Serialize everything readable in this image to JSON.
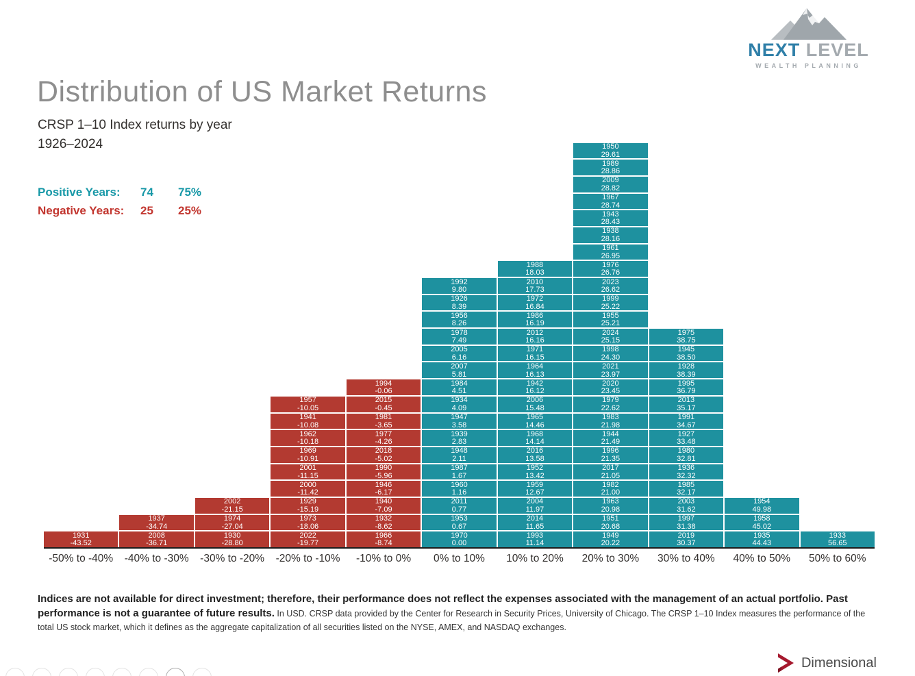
{
  "brand": {
    "name_part1": "NEXT",
    "name_part2": "LEVEL",
    "tagline": "WEALTH PLANNING"
  },
  "stats": {
    "positive_label": "Positive Years:",
    "positive_count": "74",
    "positive_pct": "75%",
    "negative_label": "Negative Years:",
    "negative_count": "25",
    "negative_pct": "25%"
  },
  "colors": {
    "positive_bar": "#1E919F",
    "negative_bar": "#B33A31",
    "positive_text": "#1798A7",
    "negative_text": "#C2362F",
    "title_gray": "#8E8E8E"
  },
  "chart_data": {
    "type": "bar",
    "subtype": "stacked-histogram-of-annual-returns",
    "title": "Distribution of US Market Returns",
    "subtitle": "CRSP 1–10 Index returns by year",
    "period": "1926–2024",
    "xlabel": "Return range bins",
    "ylabel": "Count of years (each cell = one year, labeled year / return %)",
    "legend_position": "none",
    "grid": false,
    "categories": [
      "-50% to -40%",
      "-40% to -30%",
      "-30% to -20%",
      "-20% to -10%",
      "-10% to 0%",
      "0% to 10%",
      "10% to 20%",
      "20% to 30%",
      "30% to 40%",
      "40% to 50%",
      "50% to 60%"
    ],
    "counts": [
      1,
      2,
      3,
      9,
      10,
      16,
      17,
      24,
      13,
      3,
      1
    ],
    "bins": [
      {
        "label": "-50% to -40%",
        "sign": "negative",
        "cells": [
          {
            "year": "1931",
            "value": "-43.52"
          }
        ]
      },
      {
        "label": "-40% to -30%",
        "sign": "negative",
        "cells": [
          {
            "year": "1937",
            "value": "-34.74"
          },
          {
            "year": "2008",
            "value": "-36.71"
          }
        ]
      },
      {
        "label": "-30% to -20%",
        "sign": "negative",
        "cells": [
          {
            "year": "2002",
            "value": "-21.15"
          },
          {
            "year": "1974",
            "value": "-27.04"
          },
          {
            "year": "1930",
            "value": "-28.80"
          }
        ]
      },
      {
        "label": "-20% to -10%",
        "sign": "negative",
        "cells": [
          {
            "year": "1957",
            "value": "-10.05"
          },
          {
            "year": "1941",
            "value": "-10.08"
          },
          {
            "year": "1962",
            "value": "-10.18"
          },
          {
            "year": "1969",
            "value": "-10.91"
          },
          {
            "year": "2001",
            "value": "-11.15"
          },
          {
            "year": "2000",
            "value": "-11.42"
          },
          {
            "year": "1929",
            "value": "-15.19"
          },
          {
            "year": "1973",
            "value": "-18.06"
          },
          {
            "year": "2022",
            "value": "-19.77"
          }
        ]
      },
      {
        "label": "-10% to 0%",
        "sign": "negative",
        "cells": [
          {
            "year": "1994",
            "value": "-0.06"
          },
          {
            "year": "2015",
            "value": "-0.45"
          },
          {
            "year": "1981",
            "value": "-3.65"
          },
          {
            "year": "1977",
            "value": "-4.26"
          },
          {
            "year": "2018",
            "value": "-5.02"
          },
          {
            "year": "1990",
            "value": "-5.96"
          },
          {
            "year": "1946",
            "value": "-6.17"
          },
          {
            "year": "1940",
            "value": "-7.09"
          },
          {
            "year": "1932",
            "value": "-8.62"
          },
          {
            "year": "1966",
            "value": "-8.74"
          }
        ]
      },
      {
        "label": "0% to 10%",
        "sign": "positive",
        "cells": [
          {
            "year": "1992",
            "value": "9.80"
          },
          {
            "year": "1926",
            "value": "8.39"
          },
          {
            "year": "1956",
            "value": "8.26"
          },
          {
            "year": "1978",
            "value": "7.49"
          },
          {
            "year": "2005",
            "value": "6.16"
          },
          {
            "year": "2007",
            "value": "5.81"
          },
          {
            "year": "1984",
            "value": "4.51"
          },
          {
            "year": "1934",
            "value": "4.09"
          },
          {
            "year": "1947",
            "value": "3.58"
          },
          {
            "year": "1939",
            "value": "2.83"
          },
          {
            "year": "1948",
            "value": "2.11"
          },
          {
            "year": "1987",
            "value": "1.67"
          },
          {
            "year": "1960",
            "value": "1.16"
          },
          {
            "year": "2011",
            "value": "0.77"
          },
          {
            "year": "1953",
            "value": "0.67"
          },
          {
            "year": "1970",
            "value": "0.00"
          }
        ]
      },
      {
        "label": "10% to 20%",
        "sign": "positive",
        "cells": [
          {
            "year": "1988",
            "value": "18.03"
          },
          {
            "year": "2010",
            "value": "17.73"
          },
          {
            "year": "1972",
            "value": "16.84"
          },
          {
            "year": "1986",
            "value": "16.19"
          },
          {
            "year": "2012",
            "value": "16.16"
          },
          {
            "year": "1971",
            "value": "16.15"
          },
          {
            "year": "1964",
            "value": "16.13"
          },
          {
            "year": "1942",
            "value": "16.12"
          },
          {
            "year": "2006",
            "value": "15.48"
          },
          {
            "year": "1965",
            "value": "14.46"
          },
          {
            "year": "1968",
            "value": "14.14"
          },
          {
            "year": "2016",
            "value": "13.58"
          },
          {
            "year": "1952",
            "value": "13.42"
          },
          {
            "year": "1959",
            "value": "12.67"
          },
          {
            "year": "2004",
            "value": "11.97"
          },
          {
            "year": "2014",
            "value": "11.65"
          },
          {
            "year": "1993",
            "value": "11.14"
          }
        ]
      },
      {
        "label": "20% to 30%",
        "sign": "positive",
        "cells": [
          {
            "year": "1950",
            "value": "29.61"
          },
          {
            "year": "1989",
            "value": "28.86"
          },
          {
            "year": "2009",
            "value": "28.82"
          },
          {
            "year": "1967",
            "value": "28.74"
          },
          {
            "year": "1943",
            "value": "28.43"
          },
          {
            "year": "1938",
            "value": "28.16"
          },
          {
            "year": "1961",
            "value": "26.95"
          },
          {
            "year": "1976",
            "value": "26.76"
          },
          {
            "year": "2023",
            "value": "26.62"
          },
          {
            "year": "1999",
            "value": "25.22"
          },
          {
            "year": "1955",
            "value": "25.21"
          },
          {
            "year": "2024",
            "value": "25.15"
          },
          {
            "year": "1998",
            "value": "24.30"
          },
          {
            "year": "2021",
            "value": "23.97"
          },
          {
            "year": "2020",
            "value": "23.45"
          },
          {
            "year": "1979",
            "value": "22.62"
          },
          {
            "year": "1983",
            "value": "21.98"
          },
          {
            "year": "1944",
            "value": "21.49"
          },
          {
            "year": "1996",
            "value": "21.35"
          },
          {
            "year": "2017",
            "value": "21.05"
          },
          {
            "year": "1982",
            "value": "21.00"
          },
          {
            "year": "1963",
            "value": "20.98"
          },
          {
            "year": "1951",
            "value": "20.68"
          },
          {
            "year": "1949",
            "value": "20.22"
          }
        ]
      },
      {
        "label": "30% to 40%",
        "sign": "positive",
        "cells": [
          {
            "year": "1975",
            "value": "38.75"
          },
          {
            "year": "1945",
            "value": "38.50"
          },
          {
            "year": "1928",
            "value": "38.39"
          },
          {
            "year": "1995",
            "value": "36.79"
          },
          {
            "year": "2013",
            "value": "35.17"
          },
          {
            "year": "1991",
            "value": "34.67"
          },
          {
            "year": "1927",
            "value": "33.48"
          },
          {
            "year": "1980",
            "value": "32.81"
          },
          {
            "year": "1936",
            "value": "32.32"
          },
          {
            "year": "1985",
            "value": "32.17"
          },
          {
            "year": "2003",
            "value": "31.62"
          },
          {
            "year": "1997",
            "value": "31.38"
          },
          {
            "year": "2019",
            "value": "30.37"
          }
        ]
      },
      {
        "label": "40% to 50%",
        "sign": "positive",
        "cells": [
          {
            "year": "1954",
            "value": "49.98"
          },
          {
            "year": "1958",
            "value": "45.02"
          },
          {
            "year": "1935",
            "value": "44.43"
          }
        ]
      },
      {
        "label": "50% to 60%",
        "sign": "positive",
        "cells": [
          {
            "year": "1933",
            "value": "56.65"
          }
        ]
      }
    ]
  },
  "footnote": {
    "bold": "Indices are not available for direct investment; therefore, their performance does not reflect the expenses associated with the management of an actual portfolio. Past performance is not a guarantee of future results.",
    "regular": " In USD. CRSP data provided by the Center for Research in Security Prices, University of Chicago. The CRSP 1–10 Index measures the performance of the total US stock market, which it defines as the aggregate capitalization of all securities listed on the NYSE, AMEX, and NASDAQ exchanges."
  },
  "vendor": {
    "label": "Dimensional"
  },
  "pagination": {
    "count": 8,
    "active_index": 6
  }
}
